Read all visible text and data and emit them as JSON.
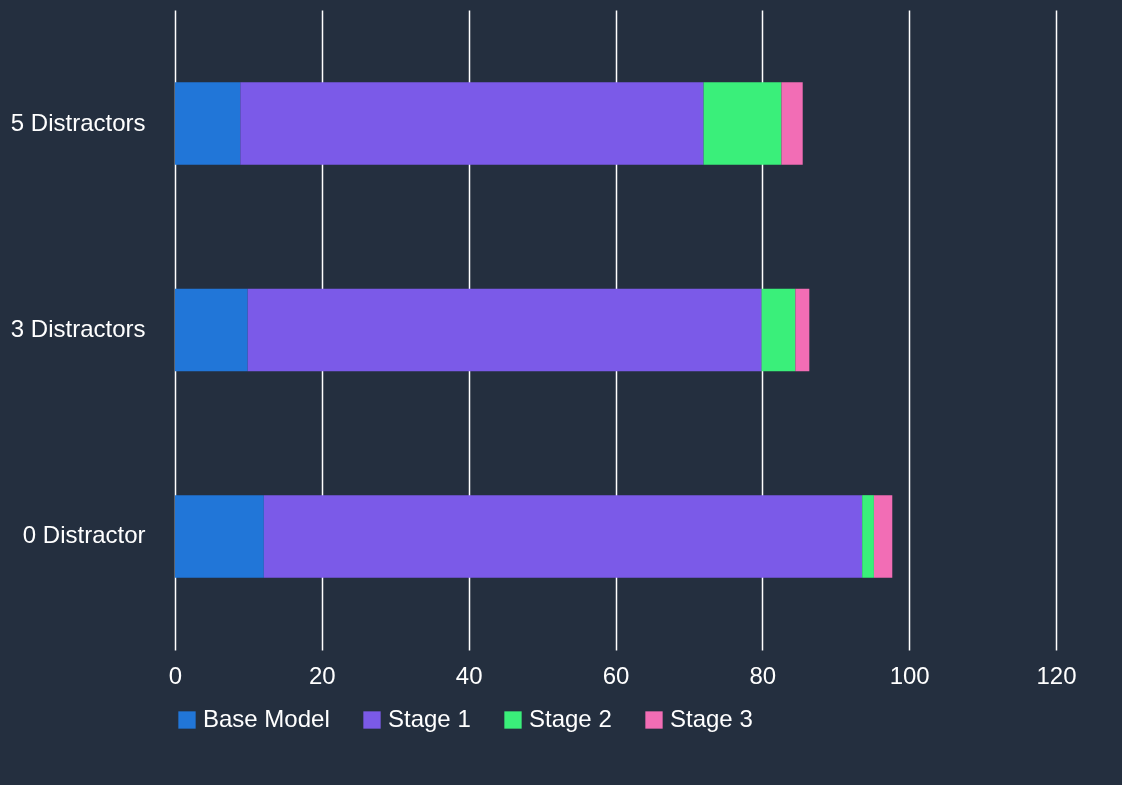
{
  "chart_data": {
    "type": "bar",
    "orientation": "horizontal",
    "stacked": true,
    "categories": [
      "5 Distractors",
      "3 Distractors",
      "0 Distractor"
    ],
    "series": [
      {
        "name": "Base Model",
        "color": "#2176d8",
        "values": [
          8.9,
          9.9,
          12.1
        ]
      },
      {
        "name": "Stage 1",
        "color": "#7b5ae8",
        "values": [
          63.1,
          70.0,
          81.5
        ]
      },
      {
        "name": "Stage 2",
        "color": "#3aef7a",
        "values": [
          10.6,
          4.6,
          1.6
        ]
      },
      {
        "name": "Stage 3",
        "color": "#f26db5",
        "values": [
          2.9,
          1.9,
          2.5
        ]
      }
    ],
    "xlim": [
      0,
      120
    ],
    "xticks": [
      0,
      20,
      40,
      60,
      80,
      100,
      120
    ],
    "grid": "x",
    "legend": "bottom"
  }
}
